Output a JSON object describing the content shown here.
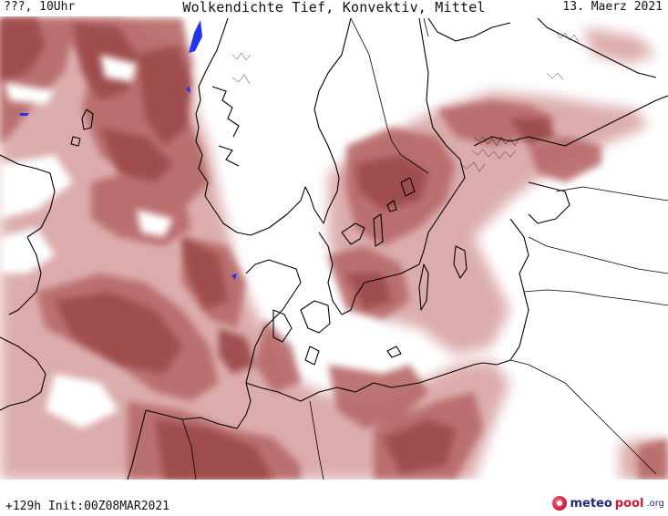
{
  "header": {
    "location": "???, 10Uhr",
    "title": "Wolkendichte  Tief, Konvektiv, Mittel",
    "date": "13. Maerz 2021"
  },
  "footer": {
    "init": "+129h Init:00Z08MAR2021"
  },
  "brand": {
    "meteo": "meteo",
    "pool": "pool",
    "org": ".org"
  },
  "colors": {
    "cloud_dark": "#9e4b4b",
    "cloud_mid": "#b86a6a",
    "cloud_light": "#d9a4a4",
    "coastline": "#000000",
    "high_density": "#2233ee"
  }
}
